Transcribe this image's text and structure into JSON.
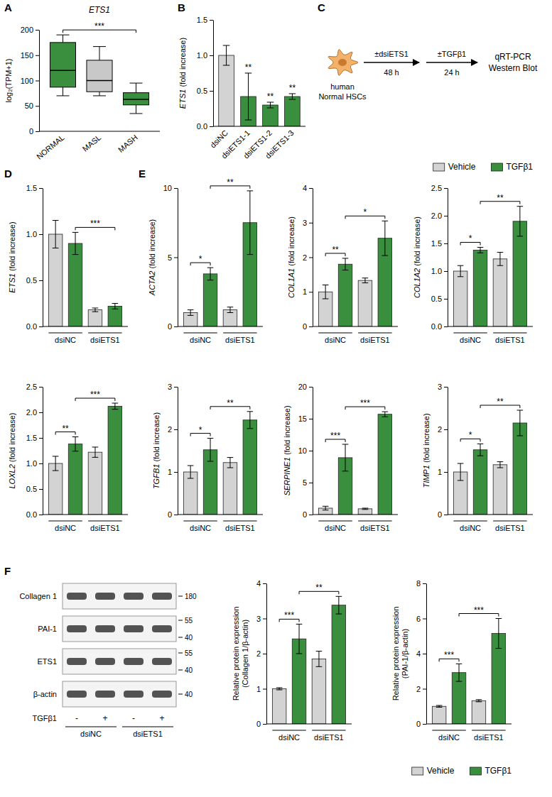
{
  "chart_data": [
    {
      "panel": "A",
      "type": "box",
      "title": "ETS1",
      "ylabel": "log₂(TPM+1)",
      "categories": [
        "NORMAL",
        "MASL",
        "MASH"
      ],
      "colors": [
        "#3a8f3e",
        "#c8c8c8",
        "#3a8f3e"
      ],
      "boxes": [
        {
          "min": 70,
          "q1": 87,
          "median": 120,
          "q3": 175,
          "max": 190
        },
        {
          "min": 70,
          "q1": 78,
          "median": 100,
          "q3": 140,
          "max": 167
        },
        {
          "min": 35,
          "q1": 52,
          "median": 63,
          "q3": 76,
          "max": 95
        }
      ],
      "ylim": [
        0,
        200
      ],
      "yticks": [
        0,
        50,
        100,
        150,
        200
      ],
      "comparisons": [
        {
          "pair": [
            0,
            2
          ],
          "label": "***"
        }
      ]
    },
    {
      "panel": "B",
      "type": "bar",
      "ylabel": "ETS1 (fold increase)",
      "categories": [
        "dsiNC",
        "dsiETS1-1",
        "dsiETS1-2",
        "dsiETS1-3"
      ],
      "values": [
        1.0,
        0.42,
        0.3,
        0.42
      ],
      "errors": [
        0.14,
        0.33,
        0.04,
        0.04
      ],
      "colors": [
        "#d3d3d3",
        "#3a8f3e",
        "#3a8f3e",
        "#3a8f3e"
      ],
      "ylim": [
        0,
        1.5
      ],
      "yticks": [
        {
          "value": 0,
          "label": "0.0"
        },
        {
          "value": 0.5,
          "label": "0.5"
        },
        {
          "value": 1,
          "label": "1.0"
        },
        {
          "value": 1.5,
          "label": "1.5"
        }
      ],
      "annotations": [
        {
          "index": 1,
          "label": "**"
        },
        {
          "index": 2,
          "label": "**"
        },
        {
          "index": 3,
          "label": "**"
        }
      ]
    },
    {
      "panel": "C",
      "type": "diagram",
      "cell_label": [
        "human",
        "Normal HSCs"
      ],
      "steps": [
        {
          "label": "±dsiETS1",
          "time": "48 h"
        },
        {
          "label": "±TGFβ1",
          "time": "24 h"
        }
      ],
      "readouts": [
        "qRT-PCR",
        "Western Blot"
      ]
    },
    {
      "panel": "D",
      "type": "bar",
      "ylabel": "ETS1 (fold increase)",
      "categories": [
        "dsiNC",
        "dsiETS1"
      ],
      "series": [
        {
          "name": "Vehicle",
          "color": "#d3d3d3",
          "values": [
            1.0,
            0.18
          ],
          "errors": [
            0.15,
            0.02
          ]
        },
        {
          "name": "TGFβ1",
          "color": "#3a8f3e",
          "values": [
            0.9,
            0.22
          ],
          "errors": [
            0.12,
            0.03
          ]
        }
      ],
      "ylim": [
        0,
        1.5
      ],
      "yticks": [
        {
          "value": 0,
          "label": "0.0"
        },
        {
          "value": 0.5,
          "label": "0.5"
        },
        {
          "value": 1,
          "label": "1.0"
        },
        {
          "value": 1.5,
          "label": "1.5"
        }
      ],
      "comparisons": [
        {
          "pair": [
            1,
            3
          ],
          "label": "***"
        }
      ]
    },
    {
      "panel": "E",
      "type": "bar",
      "ylabel": "ACTA2 (fold increase)",
      "categories": [
        "dsiNC",
        "dsiETS1"
      ],
      "series": [
        {
          "name": "Vehicle",
          "color": "#d3d3d3",
          "values": [
            1.0,
            1.2
          ],
          "errors": [
            0.2,
            0.2
          ]
        },
        {
          "name": "TGFβ1",
          "color": "#3a8f3e",
          "values": [
            3.8,
            7.5
          ],
          "errors": [
            0.45,
            2.3
          ]
        }
      ],
      "ylim": [
        0,
        10
      ],
      "yticks": [
        0,
        5,
        10
      ],
      "comparisons": [
        {
          "pair": [
            0,
            1
          ],
          "label": "*"
        },
        {
          "pair": [
            1,
            3
          ],
          "label": "**"
        }
      ]
    },
    {
      "type": "bar",
      "ylabel": "COL1A1 (fold increase)",
      "categories": [
        "dsiNC",
        "dsiETS1"
      ],
      "series": [
        {
          "name": "Vehicle",
          "color": "#d3d3d3",
          "values": [
            1.0,
            1.33
          ],
          "errors": [
            0.2,
            0.07
          ]
        },
        {
          "name": "TGFβ1",
          "color": "#3a8f3e",
          "values": [
            1.8,
            2.55
          ],
          "errors": [
            0.17,
            0.5
          ]
        }
      ],
      "ylim": [
        0,
        4
      ],
      "yticks": [
        0,
        1,
        2,
        3,
        4
      ],
      "comparisons": [
        {
          "pair": [
            0,
            1
          ],
          "label": "**"
        },
        {
          "pair": [
            1,
            3
          ],
          "label": "*"
        }
      ]
    },
    {
      "type": "bar",
      "ylabel": "COL1A2 (fold increase)",
      "categories": [
        "dsiNC",
        "dsiETS1"
      ],
      "series": [
        {
          "name": "Vehicle",
          "color": "#d3d3d3",
          "values": [
            1.0,
            1.22
          ],
          "errors": [
            0.1,
            0.12
          ]
        },
        {
          "name": "TGFβ1",
          "color": "#3a8f3e",
          "values": [
            1.38,
            1.9
          ],
          "errors": [
            0.05,
            0.27
          ]
        }
      ],
      "ylim": [
        0,
        2.5
      ],
      "yticks": [
        {
          "value": 0,
          "label": "0.0"
        },
        {
          "value": 0.5,
          "label": "0.5"
        },
        {
          "value": 1,
          "label": "1.0"
        },
        {
          "value": 1.5,
          "label": "1.5"
        },
        {
          "value": 2,
          "label": "2.0"
        },
        {
          "value": 2.5,
          "label": "2.5"
        }
      ],
      "comparisons": [
        {
          "pair": [
            0,
            1
          ],
          "label": "*"
        },
        {
          "pair": [
            1,
            3
          ],
          "label": "**"
        }
      ],
      "legend": "top-right"
    },
    {
      "type": "bar",
      "ylabel": "LOXL2 (fold increase)",
      "categories": [
        "dsiNC",
        "dsiETS1"
      ],
      "series": [
        {
          "name": "Vehicle",
          "color": "#d3d3d3",
          "values": [
            1.0,
            1.22
          ],
          "errors": [
            0.14,
            0.1
          ]
        },
        {
          "name": "TGFβ1",
          "color": "#3a8f3e",
          "values": [
            1.38,
            2.12
          ],
          "errors": [
            0.14,
            0.06
          ]
        }
      ],
      "ylim": [
        0,
        2.5
      ],
      "yticks": [
        {
          "value": 0,
          "label": "0.0"
        },
        {
          "value": 0.5,
          "label": "0.5"
        },
        {
          "value": 1,
          "label": "1.0"
        },
        {
          "value": 1.5,
          "label": "1.5"
        },
        {
          "value": 2,
          "label": "2.0"
        },
        {
          "value": 2.5,
          "label": "2.5"
        }
      ],
      "comparisons": [
        {
          "pair": [
            0,
            1
          ],
          "label": "**"
        },
        {
          "pair": [
            1,
            3
          ],
          "label": "***"
        }
      ]
    },
    {
      "type": "bar",
      "ylabel": "TGFB1 (fold increase)",
      "categories": [
        "dsiNC",
        "dsiETS1"
      ],
      "series": [
        {
          "name": "Vehicle",
          "color": "#d3d3d3",
          "values": [
            1.0,
            1.22
          ],
          "errors": [
            0.15,
            0.12
          ]
        },
        {
          "name": "TGFβ1",
          "color": "#3a8f3e",
          "values": [
            1.52,
            2.22
          ],
          "errors": [
            0.27,
            0.2
          ]
        }
      ],
      "ylim": [
        0,
        3
      ],
      "yticks": [
        0,
        1,
        2,
        3
      ],
      "comparisons": [
        {
          "pair": [
            0,
            1
          ],
          "label": "*"
        },
        {
          "pair": [
            1,
            3
          ],
          "label": "**"
        }
      ]
    },
    {
      "type": "bar",
      "ylabel": "SERPINE1 (fold increase)",
      "categories": [
        "dsiNC",
        "dsiETS1"
      ],
      "series": [
        {
          "name": "Vehicle",
          "color": "#d3d3d3",
          "values": [
            1.0,
            0.9
          ],
          "errors": [
            0.3,
            0.1
          ]
        },
        {
          "name": "TGFβ1",
          "color": "#3a8f3e",
          "values": [
            8.9,
            15.7
          ],
          "errors": [
            2.1,
            0.4
          ]
        }
      ],
      "ylim": [
        0,
        20
      ],
      "yticks": [
        0,
        5,
        10,
        15,
        20
      ],
      "comparisons": [
        {
          "pair": [
            0,
            1
          ],
          "label": "***"
        },
        {
          "pair": [
            1,
            3
          ],
          "label": "***"
        }
      ]
    },
    {
      "type": "bar",
      "ylabel": "TIMP1 (fold increase)",
      "categories": [
        "dsiNC",
        "dsiETS1"
      ],
      "series": [
        {
          "name": "Vehicle",
          "color": "#d3d3d3",
          "values": [
            1.0,
            1.17
          ],
          "errors": [
            0.2,
            0.07
          ]
        },
        {
          "name": "TGFβ1",
          "color": "#3a8f3e",
          "values": [
            1.52,
            2.15
          ],
          "errors": [
            0.14,
            0.3
          ]
        }
      ],
      "ylim": [
        0,
        3
      ],
      "yticks": [
        0,
        1,
        2,
        3
      ],
      "comparisons": [
        {
          "pair": [
            0,
            1
          ],
          "label": "*"
        },
        {
          "pair": [
            1,
            3
          ],
          "label": "**"
        }
      ]
    },
    {
      "panel": "F",
      "type": "blot",
      "rows": [
        {
          "label": "Collagen 1",
          "markers": [
            180
          ]
        },
        {
          "label": "PAI-1",
          "markers": [
            55,
            40
          ]
        },
        {
          "label": "ETS1",
          "markers": [
            55,
            40
          ]
        },
        {
          "label": "β-actin",
          "markers": [
            40
          ]
        }
      ],
      "treatment": "TGFβ1",
      "lanes": [
        "-",
        "+",
        "-",
        "+"
      ],
      "groups": [
        "dsiNC",
        "dsiETS1"
      ]
    },
    {
      "type": "bar",
      "ylabel": [
        "Relative protein expression",
        "(Collagen 1/β-actin)"
      ],
      "categories": [
        "dsiNC",
        "dsiETS1"
      ],
      "series": [
        {
          "name": "Vehicle",
          "color": "#d3d3d3",
          "values": [
            1.0,
            1.85
          ],
          "errors": [
            0.03,
            0.22
          ]
        },
        {
          "name": "TGFβ1",
          "color": "#3a8f3e",
          "values": [
            2.42,
            3.38
          ],
          "errors": [
            0.42,
            0.25
          ]
        }
      ],
      "ylim": [
        0,
        4
      ],
      "yticks": [
        0,
        1,
        2,
        3,
        4
      ],
      "comparisons": [
        {
          "pair": [
            0,
            1
          ],
          "label": "***"
        },
        {
          "pair": [
            1,
            3
          ],
          "label": "**"
        }
      ]
    },
    {
      "type": "bar",
      "ylabel": [
        "Relative protein expression",
        "(PAI-1/β-actin)"
      ],
      "categories": [
        "dsiNC",
        "dsiETS1"
      ],
      "series": [
        {
          "name": "Vehicle",
          "color": "#d3d3d3",
          "values": [
            1.0,
            1.32
          ],
          "errors": [
            0.05,
            0.06
          ]
        },
        {
          "name": "TGFβ1",
          "color": "#3a8f3e",
          "values": [
            2.92,
            5.15
          ],
          "errors": [
            0.5,
            0.85
          ]
        }
      ],
      "ylim": [
        0,
        8
      ],
      "yticks": [
        0,
        2,
        4,
        6,
        8
      ],
      "comparisons": [
        {
          "pair": [
            0,
            1
          ],
          "label": "***"
        },
        {
          "pair": [
            1,
            3
          ],
          "label": "***"
        }
      ],
      "legend": "bottom-right"
    }
  ]
}
